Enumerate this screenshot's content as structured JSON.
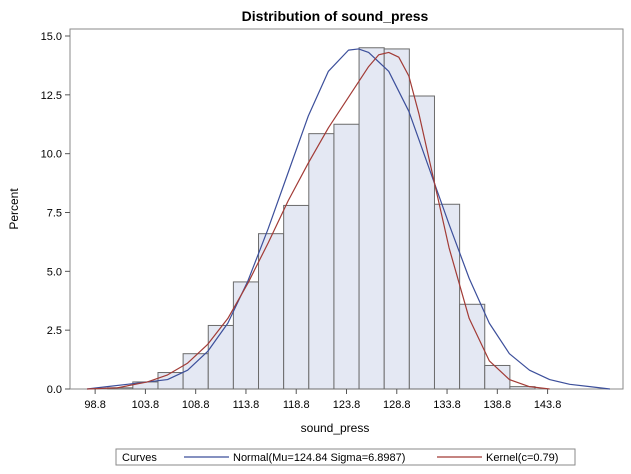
{
  "chart_data": {
    "type": "bar",
    "title": "Distribution of sound_press",
    "xlabel": "sound_press",
    "ylabel": "Percent",
    "xlim": [
      96.3,
      151.3
    ],
    "ylim": [
      0,
      15
    ],
    "x_ticks": [
      "98.8",
      "103.8",
      "108.8",
      "113.8",
      "118.8",
      "123.8",
      "128.8",
      "133.8",
      "138.8",
      "143.8"
    ],
    "y_ticks": [
      "0.0",
      "2.5",
      "5.0",
      "7.5",
      "10.0",
      "12.5",
      "15.0"
    ],
    "bin_width": 2.5,
    "bins": [
      {
        "center": 101.3,
        "value": 0.05
      },
      {
        "center": 103.8,
        "value": 0.3
      },
      {
        "center": 106.3,
        "value": 0.7
      },
      {
        "center": 108.8,
        "value": 1.5
      },
      {
        "center": 111.3,
        "value": 2.7
      },
      {
        "center": 113.8,
        "value": 4.55
      },
      {
        "center": 116.3,
        "value": 6.6
      },
      {
        "center": 118.8,
        "value": 7.8
      },
      {
        "center": 121.3,
        "value": 10.85
      },
      {
        "center": 123.8,
        "value": 11.25
      },
      {
        "center": 126.3,
        "value": 14.5
      },
      {
        "center": 128.8,
        "value": 14.45
      },
      {
        "center": 131.3,
        "value": 12.45
      },
      {
        "center": 133.8,
        "value": 7.85
      },
      {
        "center": 136.3,
        "value": 3.6
      },
      {
        "center": 138.8,
        "value": 1.0
      },
      {
        "center": 141.3,
        "value": 0.1
      }
    ],
    "series": [
      {
        "name": "Normal(Mu=124.84 Sigma=6.8987)",
        "color": "#3c4f9b",
        "x": [
          98.0,
          100.0,
          102.0,
          104.0,
          106.0,
          108.0,
          110.0,
          112.0,
          114.0,
          116.0,
          118.0,
          120.0,
          122.0,
          124.0,
          125.0,
          126.0,
          128.0,
          130.0,
          132.0,
          134.0,
          136.0,
          138.0,
          140.0,
          142.0,
          144.0,
          146.0,
          148.0,
          150.0
        ],
        "y": [
          0.0,
          0.1,
          0.2,
          0.3,
          0.4,
          0.8,
          1.6,
          2.8,
          4.6,
          6.8,
          9.2,
          11.6,
          13.5,
          14.4,
          14.45,
          14.3,
          13.5,
          11.8,
          9.4,
          7.0,
          4.7,
          2.8,
          1.5,
          0.8,
          0.4,
          0.2,
          0.1,
          0.0
        ]
      },
      {
        "name": "Kernel(c=0.79)",
        "color": "#a23b36",
        "x": [
          98.0,
          101.0,
          104.0,
          106.0,
          108.0,
          110.0,
          112.0,
          114.0,
          116.0,
          118.0,
          120.0,
          122.0,
          124.0,
          126.0,
          127.0,
          128.0,
          129.0,
          130.0,
          131.0,
          132.0,
          134.0,
          136.0,
          138.0,
          140.0,
          142.0,
          144.0
        ],
        "y": [
          0.0,
          0.05,
          0.3,
          0.6,
          1.1,
          1.9,
          3.0,
          4.5,
          6.2,
          8.0,
          9.6,
          11.1,
          12.4,
          13.7,
          14.2,
          14.3,
          14.1,
          13.3,
          11.7,
          9.8,
          6.0,
          3.0,
          1.2,
          0.4,
          0.1,
          0.0
        ]
      }
    ],
    "legend": {
      "title": "Curves",
      "position": "bottom",
      "entries": [
        "Normal(Mu=124.84 Sigma=6.8987)",
        "Kernel(c=0.79)"
      ]
    },
    "grid": false,
    "bar_fill": "#e4e8f3",
    "bar_stroke": "#6b6b6b"
  }
}
